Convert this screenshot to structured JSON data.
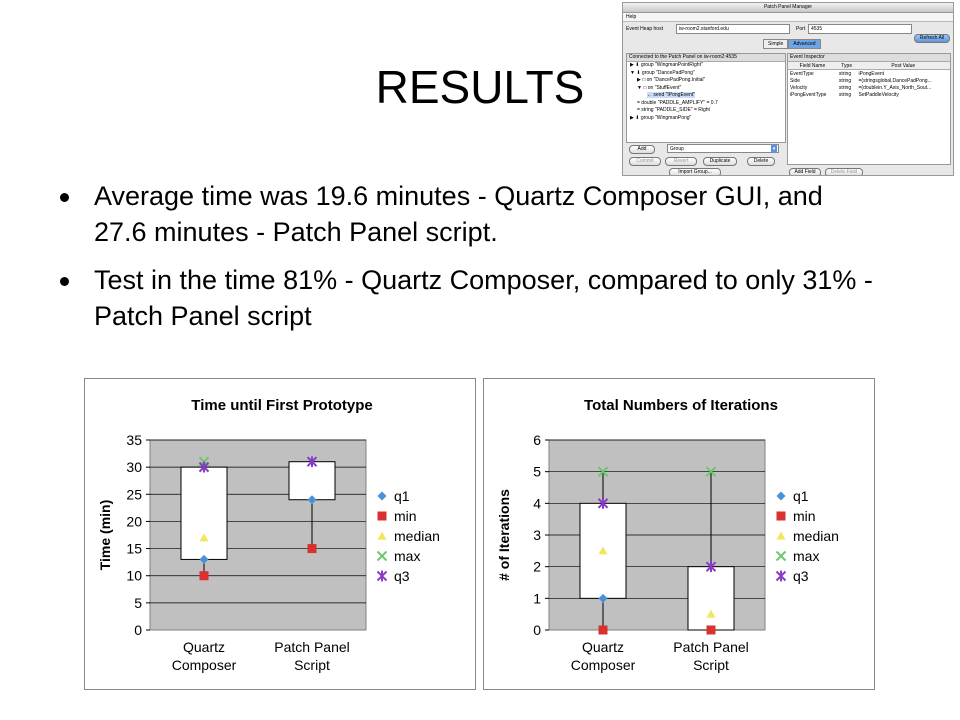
{
  "slide": {
    "title": "RESULTS",
    "bullets": [
      "Average time was 19.6 minutes - Quartz Composer GUI, and 27.6 minutes - Patch Panel script.",
      "Test in the time 81% - Quartz Composer, compared to only 31% - Patch Panel script"
    ]
  },
  "patch_panel": {
    "title": "Patch Panel Manager",
    "menu": "Help",
    "host_label": "Event Heap host",
    "host_value": "iw-room2.stanford.edu",
    "port_label": "Port",
    "port_value": "4535",
    "refresh_label": "Refresh All",
    "tabs": [
      "Simple",
      "Advanced"
    ],
    "tree_header": "Connected to the Patch Panel on iw-room2:4535",
    "tree": [
      "▶ ⬇ group \"WingmanPointRight\"",
      "▼ ⬇ group \"DancePadPong\"",
      "▶ □ on \"DancePadPong.Initial\"",
      "▼ □ on \"StuffEvent\"",
      "← send \"IPongEvent\"",
      "= double \"PADDLE_AMPLIFY\" = 0.7",
      "= string \"PADDLE_SIDE\" = Right",
      "▶ ⬇ group \"WingmanPong\""
    ],
    "inspector_header": "Event Inspector",
    "inspector_columns": [
      "Field Name",
      "Type",
      "Post Value"
    ],
    "inspector_rows": [
      [
        "EventType",
        "string",
        "iPongEvent"
      ],
      [
        "Side",
        "string",
        "=(stringsglobal.DancePadPong..."
      ],
      [
        "Velocity",
        "string",
        "=(doublein.Y_Axis_North_Sout..."
      ],
      [
        "iPongEventType",
        "string",
        "SetPaddleVelocity"
      ]
    ],
    "add_label": "Add",
    "group_select": "Group",
    "commit_label": "Commit",
    "revert_label": "Revert",
    "duplicate_label": "Duplicate",
    "delete_label": "Delete",
    "import_label": "Import Group...",
    "add_field_label": "Add Field",
    "delete_field_label": "Delete Field"
  },
  "chart_data": [
    {
      "type": "box",
      "title": "Time until First Prototype",
      "ylabel": "Time (min)",
      "xlabel": "",
      "ylim": [
        0,
        35
      ],
      "yticks": [
        0,
        5,
        10,
        15,
        20,
        25,
        30,
        35
      ],
      "categories": [
        "Quartz\nComposer",
        "Patch Panel\nScript"
      ],
      "series": [
        {
          "name": "q1",
          "values": [
            13,
            24
          ],
          "color": "#4a90d9",
          "marker": "diamond"
        },
        {
          "name": "min",
          "values": [
            10,
            15
          ],
          "color": "#d93030",
          "marker": "square"
        },
        {
          "name": "median",
          "values": [
            17,
            null
          ],
          "color": "#f2e65a",
          "marker": "triangle"
        },
        {
          "name": "max",
          "values": [
            31,
            null
          ],
          "color": "#6cc86c",
          "marker": "x"
        },
        {
          "name": "q3",
          "values": [
            30,
            31
          ],
          "color": "#8a3ac8",
          "marker": "star"
        }
      ],
      "grid": true,
      "legend": "right"
    },
    {
      "type": "box",
      "title": "Total Numbers of Iterations",
      "ylabel": "# of Iterations",
      "xlabel": "",
      "ylim": [
        0,
        6
      ],
      "yticks": [
        0,
        1,
        2,
        3,
        4,
        5,
        6
      ],
      "categories": [
        "Quartz\nComposer",
        "Patch Panel\nScript"
      ],
      "series": [
        {
          "name": "q1",
          "values": [
            1,
            null
          ],
          "color": "#4a90d9",
          "marker": "diamond"
        },
        {
          "name": "min",
          "values": [
            0,
            0
          ],
          "color": "#d93030",
          "marker": "square"
        },
        {
          "name": "median",
          "values": [
            2.5,
            0.5
          ],
          "color": "#f2e65a",
          "marker": "triangle"
        },
        {
          "name": "max",
          "values": [
            5,
            5
          ],
          "color": "#6cc86c",
          "marker": "x"
        },
        {
          "name": "q3",
          "values": [
            4,
            2
          ],
          "color": "#8a3ac8",
          "marker": "star"
        }
      ],
      "grid": true,
      "legend": "right"
    }
  ]
}
